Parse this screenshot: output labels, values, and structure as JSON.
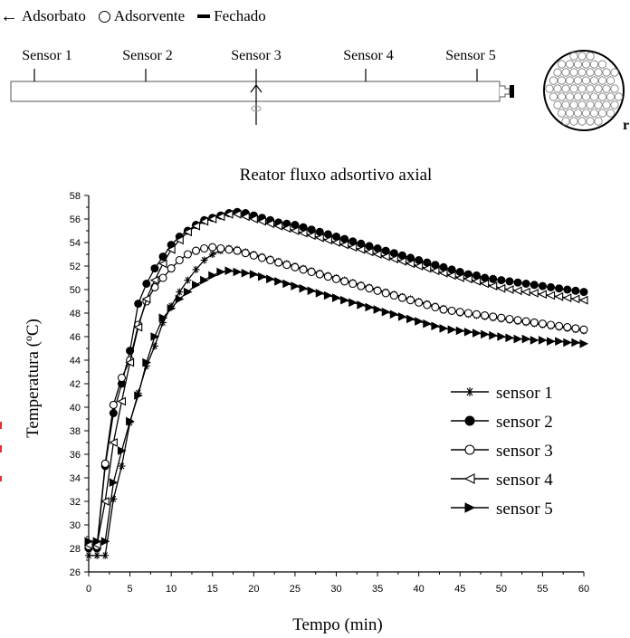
{
  "diagram": {
    "legend": [
      {
        "icon": "left-arrow-icon",
        "label": "Adsorbato"
      },
      {
        "icon": "circle-icon",
        "label": "Adsorvente"
      },
      {
        "icon": "bar-icon",
        "label": "Fechado"
      }
    ],
    "sensors": [
      "Sensor 1",
      "Sensor 2",
      "Sensor 3",
      "Sensor 4",
      "Sensor 5"
    ]
  },
  "chart_data": {
    "type": "line",
    "title": "Reator fluxo adsortivo axial",
    "xlabel": "Tempo (min)",
    "ylabel": "Temperatura (ºC)",
    "xlim": [
      0,
      60
    ],
    "ylim": [
      26,
      58
    ],
    "xticks": [
      0,
      5,
      10,
      15,
      20,
      25,
      30,
      35,
      40,
      45,
      50,
      55,
      60
    ],
    "yticks": [
      26,
      28,
      30,
      32,
      34,
      36,
      38,
      40,
      42,
      44,
      46,
      48,
      50,
      52,
      54,
      56,
      58
    ],
    "grid": false,
    "legend_position": "right",
    "x": [
      0,
      1,
      2,
      3,
      4,
      5,
      6,
      7,
      8,
      9,
      10,
      11,
      12,
      13,
      14,
      15,
      16,
      17,
      18,
      19,
      20,
      21,
      22,
      23,
      24,
      25,
      26,
      27,
      28,
      29,
      30,
      31,
      32,
      33,
      34,
      35,
      36,
      37,
      38,
      39,
      40,
      41,
      42,
      43,
      44,
      45,
      46,
      47,
      48,
      49,
      50,
      51,
      52,
      53,
      54,
      55,
      56,
      57,
      58,
      59,
      60
    ],
    "series": [
      {
        "name": "sensor 1",
        "marker": "star",
        "values": [
          27.4,
          27.4,
          27.4,
          32.2,
          35.0,
          38.7,
          41.2,
          43.5,
          45.2,
          47.2,
          48.6,
          49.8,
          50.8,
          51.7,
          52.5,
          53.0,
          53.3,
          53.5,
          53.4,
          53.2,
          53.0,
          52.8,
          52.6,
          52.4,
          52.2,
          52.0,
          51.8,
          51.6,
          51.4,
          51.2,
          51.0,
          50.8,
          50.6,
          50.4,
          50.2,
          50.0,
          49.8,
          49.6,
          49.4,
          49.2,
          49.0,
          48.8,
          48.6,
          48.4,
          48.2,
          48.0,
          47.9,
          47.8,
          47.7,
          47.6,
          47.5,
          47.4,
          47.3,
          47.2,
          47.1,
          47.0,
          46.9,
          46.8,
          46.7,
          46.6,
          46.5
        ]
      },
      {
        "name": "sensor 2",
        "marker": "filled-circle",
        "values": [
          28.0,
          28.0,
          35.0,
          39.5,
          42.0,
          44.8,
          48.8,
          50.5,
          51.8,
          52.8,
          53.8,
          54.5,
          55.0,
          55.5,
          55.9,
          56.1,
          56.3,
          56.5,
          56.6,
          56.5,
          56.3,
          56.1,
          55.9,
          55.7,
          55.6,
          55.5,
          55.3,
          55.1,
          54.9,
          54.7,
          54.5,
          54.3,
          54.1,
          53.9,
          53.7,
          53.5,
          53.3,
          53.1,
          52.9,
          52.7,
          52.5,
          52.3,
          52.1,
          51.9,
          51.7,
          51.5,
          51.3,
          51.2,
          51.0,
          50.9,
          50.8,
          50.7,
          50.6,
          50.5,
          50.4,
          50.3,
          50.2,
          50.1,
          50.0,
          49.9,
          49.8
        ]
      },
      {
        "name": "sensor 3",
        "marker": "open-circle",
        "values": [
          28.2,
          28.2,
          35.2,
          40.2,
          42.5,
          44.0,
          47.0,
          49.0,
          50.2,
          51.0,
          51.8,
          52.5,
          53.0,
          53.3,
          53.5,
          53.6,
          53.5,
          53.4,
          53.3,
          53.1,
          52.9,
          52.7,
          52.5,
          52.3,
          52.1,
          51.9,
          51.7,
          51.5,
          51.3,
          51.1,
          50.9,
          50.7,
          50.5,
          50.3,
          50.1,
          49.9,
          49.7,
          49.5,
          49.3,
          49.1,
          48.9,
          48.7,
          48.5,
          48.3,
          48.2,
          48.1,
          48.0,
          47.9,
          47.8,
          47.7,
          47.6,
          47.5,
          47.4,
          47.3,
          47.2,
          47.1,
          47.0,
          46.9,
          46.8,
          46.7,
          46.6
        ]
      },
      {
        "name": "sensor 4",
        "marker": "open-triangle-left",
        "values": [
          28.3,
          28.3,
          32.0,
          37.0,
          40.5,
          43.8,
          46.8,
          49.2,
          50.8,
          52.2,
          53.4,
          54.2,
          54.9,
          55.4,
          55.8,
          56.0,
          56.2,
          56.4,
          56.4,
          56.2,
          56.0,
          55.8,
          55.6,
          55.4,
          55.2,
          55.0,
          54.8,
          54.6,
          54.4,
          54.2,
          54.0,
          53.8,
          53.6,
          53.4,
          53.2,
          53.0,
          52.8,
          52.6,
          52.4,
          52.2,
          52.0,
          51.8,
          51.6,
          51.4,
          51.2,
          51.0,
          50.9,
          50.7,
          50.5,
          50.3,
          50.1,
          50.0,
          49.9,
          49.8,
          49.7,
          49.6,
          49.5,
          49.4,
          49.3,
          49.2,
          49.1
        ]
      },
      {
        "name": "sensor 5",
        "marker": "filled-triangle-right",
        "values": [
          28.6,
          28.6,
          28.6,
          33.6,
          36.3,
          38.8,
          41.0,
          43.8,
          46.0,
          47.6,
          48.4,
          49.2,
          49.8,
          50.4,
          50.8,
          51.2,
          51.5,
          51.6,
          51.5,
          51.4,
          51.3,
          51.1,
          50.9,
          50.7,
          50.5,
          50.3,
          50.1,
          49.9,
          49.7,
          49.5,
          49.3,
          49.1,
          48.9,
          48.7,
          48.5,
          48.3,
          48.1,
          47.9,
          47.7,
          47.5,
          47.3,
          47.1,
          46.9,
          46.7,
          46.6,
          46.5,
          46.4,
          46.3,
          46.2,
          46.1,
          46.0,
          45.9,
          45.8,
          45.8,
          45.7,
          45.7,
          45.6,
          45.6,
          45.5,
          45.5,
          45.4
        ]
      }
    ]
  }
}
